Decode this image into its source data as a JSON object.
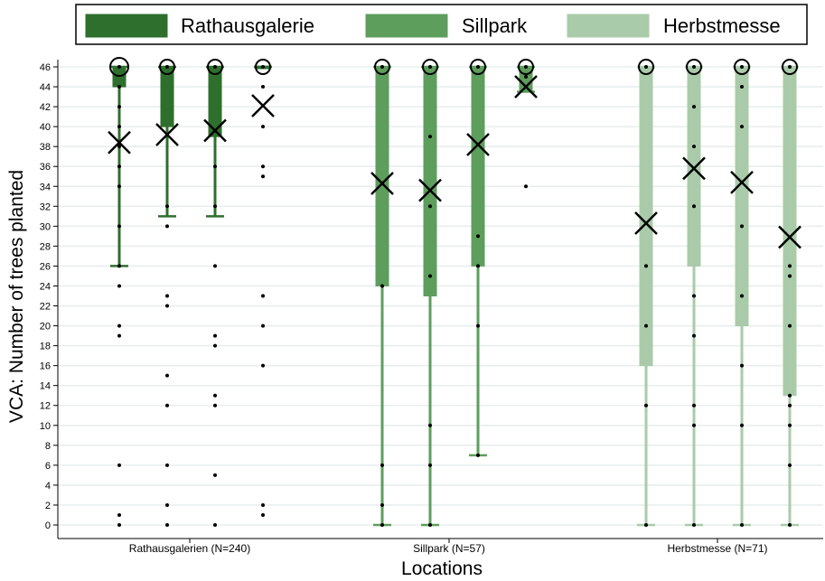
{
  "chart_data": {
    "type": "box",
    "title": "",
    "xlabel": "Locations",
    "ylabel": "VCA: Number of trees planted",
    "ylim": [
      0,
      46
    ],
    "yticks": [
      0,
      2,
      4,
      6,
      8,
      10,
      12,
      14,
      16,
      18,
      20,
      22,
      24,
      26,
      28,
      30,
      32,
      34,
      36,
      38,
      40,
      42,
      44,
      46
    ],
    "grid": true,
    "legend_position": "top",
    "legend": [
      {
        "name": "Rathausgalerie",
        "color": "#2e6f2e"
      },
      {
        "name": "Sillpark",
        "color": "#5d9e5d"
      },
      {
        "name": "Herbstmesse",
        "color": "#a9cba9"
      }
    ],
    "categories": [
      "Rathausgalerien (N=240)",
      "Sillpark (N=57)",
      "Herbstmesse (N=71)"
    ],
    "groups": [
      {
        "category": "Rathausgalerien (N=240)",
        "color": "#2e6f2e",
        "boxes": [
          {
            "q1": 44,
            "median": 46,
            "q3": 46,
            "whisker_low": 26,
            "whisker_high": 46,
            "mean": 38.4,
            "points": [
              46,
              44,
              42,
              40,
              38,
              36,
              34,
              30,
              26,
              24,
              20,
              19,
              6,
              1,
              0
            ]
          },
          {
            "q1": 40,
            "median": 46,
            "q3": 46,
            "whisker_low": 31,
            "whisker_high": 46,
            "mean": 39.2,
            "points": [
              46,
              32,
              30,
              23,
              22,
              15,
              12,
              6,
              2,
              0
            ]
          },
          {
            "q1": 39,
            "median": 46,
            "q3": 46,
            "whisker_low": 31,
            "whisker_high": 46,
            "mean": 39.6,
            "points": [
              46,
              36,
              32,
              26,
              19,
              18,
              13,
              12,
              5,
              0
            ]
          },
          {
            "q1": 46,
            "median": 46,
            "q3": 46,
            "whisker_low": 46,
            "whisker_high": 46,
            "mean": 42.1,
            "points": [
              46,
              44,
              40,
              36,
              35,
              23,
              20,
              16,
              2,
              1
            ]
          }
        ]
      },
      {
        "category": "Sillpark (N=57)",
        "color": "#5d9e5d",
        "boxes": [
          {
            "q1": 24,
            "median": 46,
            "q3": 46,
            "whisker_low": 0,
            "whisker_high": 46,
            "mean": 34.3,
            "points": [
              46,
              24,
              6,
              2,
              0
            ]
          },
          {
            "q1": 23,
            "median": 46,
            "q3": 46,
            "whisker_low": 0,
            "whisker_high": 46,
            "mean": 33.6,
            "points": [
              46,
              39,
              32,
              25,
              10,
              6,
              0
            ]
          },
          {
            "q1": 26,
            "median": 46,
            "q3": 46,
            "whisker_low": 7,
            "whisker_high": 46,
            "mean": 38.2,
            "points": [
              46,
              29,
              26,
              20,
              7
            ]
          },
          {
            "q1": 43.5,
            "median": 46,
            "q3": 46,
            "whisker_low": 43.5,
            "whisker_high": 46,
            "mean": 44.0,
            "points": [
              46,
              45,
              34
            ]
          }
        ]
      },
      {
        "category": "Herbstmesse (N=71)",
        "color": "#a9cba9",
        "boxes": [
          {
            "q1": 16,
            "median": 46,
            "q3": 46,
            "whisker_low": 0,
            "whisker_high": 46,
            "mean": 30.3,
            "points": [
              46,
              26,
              20,
              12,
              0
            ]
          },
          {
            "q1": 26,
            "median": 46,
            "q3": 46,
            "whisker_low": 0,
            "whisker_high": 46,
            "mean": 35.8,
            "points": [
              46,
              42,
              38,
              32,
              23,
              19,
              12,
              10,
              0
            ]
          },
          {
            "q1": 20,
            "median": 46,
            "q3": 46,
            "whisker_low": 0,
            "whisker_high": 46,
            "mean": 34.4,
            "points": [
              46,
              44,
              40,
              30,
              23,
              16,
              10,
              0
            ]
          },
          {
            "q1": 13,
            "median": 46,
            "q3": 46,
            "whisker_low": 0,
            "whisker_high": 46,
            "mean": 28.9,
            "points": [
              46,
              26,
              25,
              20,
              13,
              12,
              10,
              6,
              0
            ]
          }
        ]
      }
    ]
  }
}
